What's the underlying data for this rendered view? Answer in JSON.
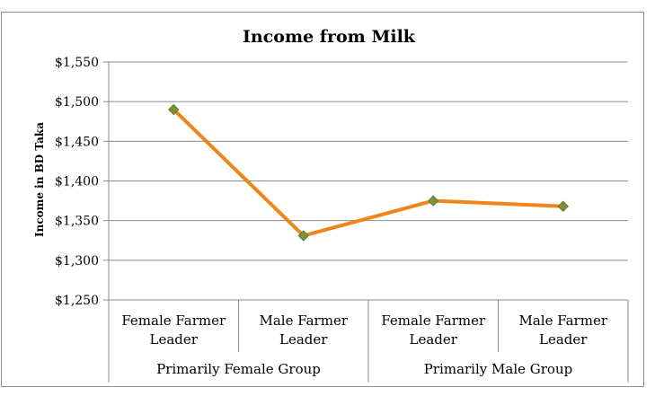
{
  "chart_data": {
    "type": "line",
    "title": "Income from Milk",
    "ylabel": "Income in BD Taka",
    "xlabel": "",
    "ylim": [
      1250,
      1550
    ],
    "yticks": [
      1250,
      1300,
      1350,
      1400,
      1450,
      1500,
      1550
    ],
    "ytick_labels": [
      "$1,250",
      "$1,300",
      "$1,350",
      "$1,400",
      "$1,450",
      "$1,500",
      "$1,550"
    ],
    "grid": true,
    "legend": "none",
    "categories": [
      [
        "Female Farmer",
        "Leader"
      ],
      [
        "Male Farmer",
        "Leader"
      ],
      [
        "Female Farmer",
        "Leader"
      ],
      [
        "Male Farmer",
        "Leader"
      ]
    ],
    "groups": [
      {
        "label": "Primarily Female Group",
        "span": 2
      },
      {
        "label": "Primarily Male Group",
        "span": 2
      }
    ],
    "series": [
      {
        "values": [
          1490,
          1331,
          1375,
          1368
        ],
        "line_color": "#f0861a",
        "marker_color": "#77933c"
      }
    ]
  }
}
